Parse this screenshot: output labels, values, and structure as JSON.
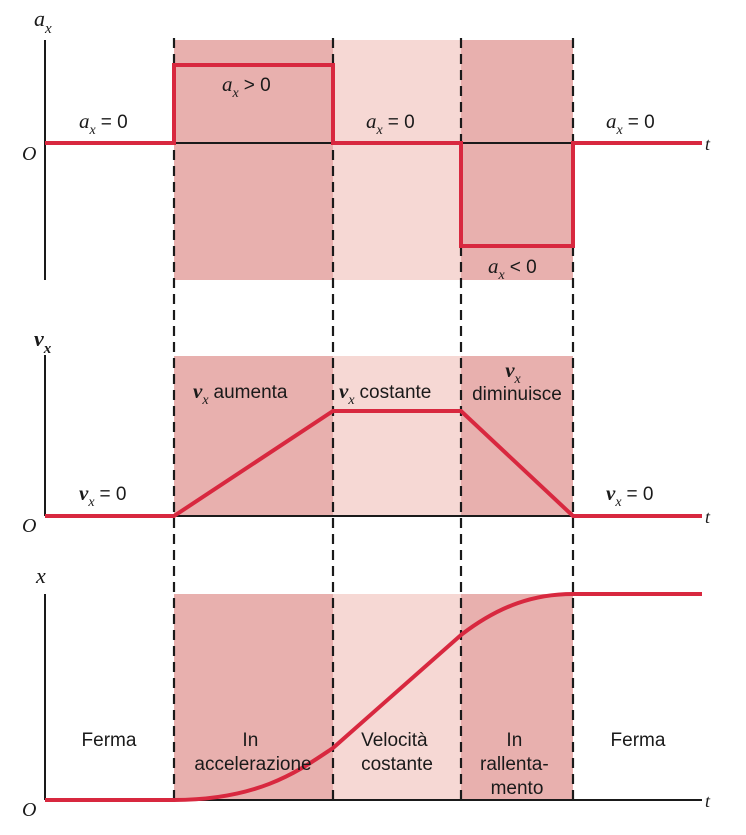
{
  "colors": {
    "band_dark": "#e8b0ae",
    "band_light": "#f6d8d4",
    "curve": "#d8283f",
    "axis": "#1a1a1a"
  },
  "graph_acceleration": {
    "y_axis_symbol": "a",
    "y_axis_subscript": "x",
    "origin": "O",
    "t_label": "t",
    "label_rest_left": "= 0",
    "label_accel": "> 0",
    "label_constant": "= 0",
    "label_decel": "< 0",
    "label_rest_right": "= 0"
  },
  "graph_velocity": {
    "y_axis_symbol": "v",
    "y_axis_subscript": "x",
    "origin": "O",
    "t_label": "t",
    "label_rest_left": "= 0",
    "label_increases": "aumenta",
    "label_constant": "costante",
    "label_decreases": "diminuisce",
    "label_rest_right": "= 0"
  },
  "graph_position": {
    "y_axis_label": "x",
    "origin": "O",
    "t_label": "t",
    "phase_rest_left": "Ferma",
    "phase_accel_line1": "In",
    "phase_accel_line2": "accelerazione",
    "phase_constant_line1": "Velocità",
    "phase_constant_line2": "costante",
    "phase_decel_line1": "In",
    "phase_decel_line2": "rallenta-",
    "phase_decel_line3": "mento",
    "phase_rest_right": "Ferma"
  }
}
